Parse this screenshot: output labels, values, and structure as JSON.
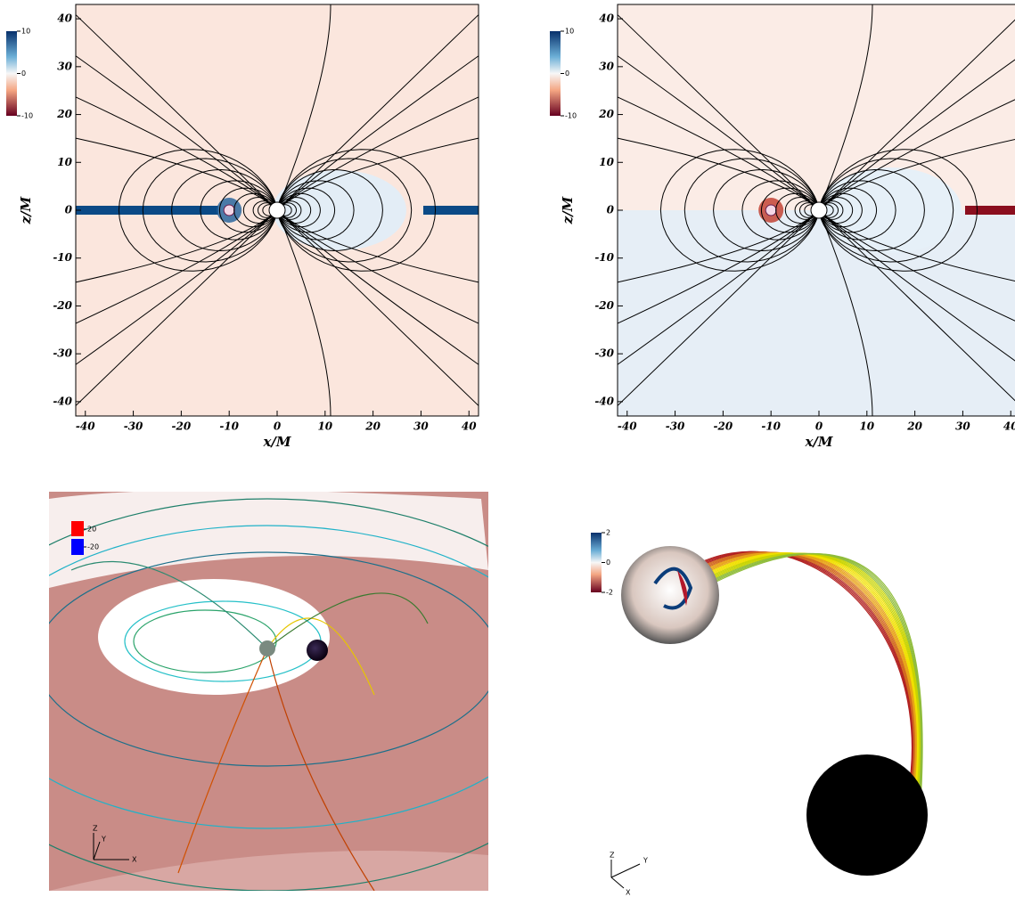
{
  "panels": [
    {
      "xlabel": "x/M",
      "ylabel": "z/M",
      "xlim": [
        -42,
        42
      ],
      "ylim": [
        -43,
        43
      ],
      "xticks": [
        -40,
        -30,
        -20,
        -10,
        0,
        10,
        20,
        30,
        40
      ],
      "yticks": [
        -40,
        -30,
        -20,
        -10,
        0,
        10,
        20,
        30,
        40
      ],
      "colorbar_ticks": [
        10,
        0,
        -10
      ]
    },
    {
      "xlabel": "x/M",
      "ylabel": "z/M",
      "xlim": [
        -42,
        42
      ],
      "ylim": [
        -43,
        43
      ],
      "xticks": [
        -40,
        -30,
        -20,
        -10,
        0,
        10,
        20,
        30,
        40
      ],
      "yticks": [
        -40,
        -30,
        -20,
        -10,
        0,
        10,
        20,
        30,
        40
      ],
      "colorbar_ticks": [
        10,
        0,
        -10
      ]
    }
  ],
  "render_left": {
    "legend_ticks": [
      20,
      -20
    ],
    "axes": [
      "Z",
      "Y",
      "X"
    ]
  },
  "render_right": {
    "colorbar_ticks": [
      2,
      0,
      -2
    ],
    "axes": [
      "Z",
      "Y",
      "X"
    ]
  }
}
